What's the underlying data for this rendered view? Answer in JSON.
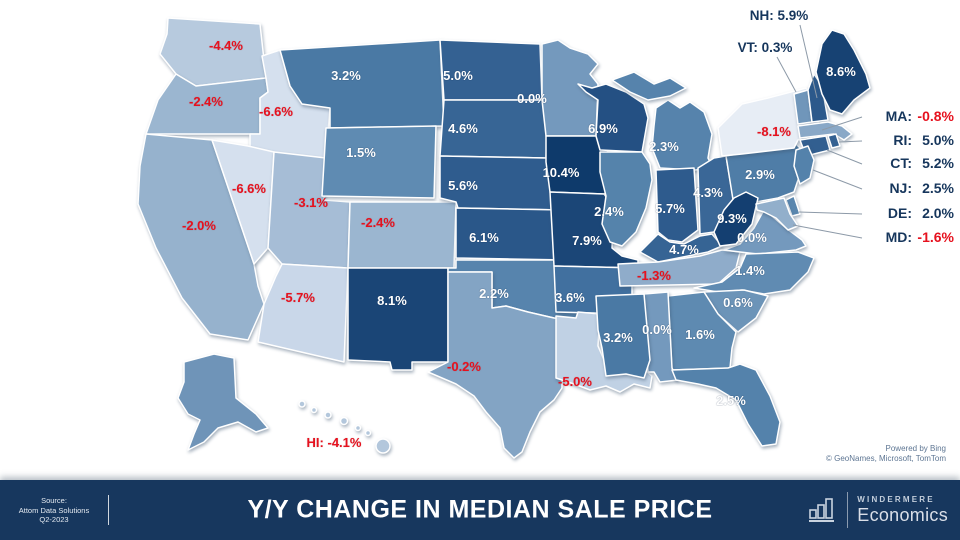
{
  "chart_data": {
    "type": "choropleth",
    "title": "Y/Y CHANGE IN MEDIAN SALE PRICE",
    "unit": "%",
    "region": "United States",
    "period": "Q2-2023",
    "states": [
      {
        "abbr": "WA",
        "name": "Washington",
        "value": -4.4,
        "label": "-4.4%",
        "fill": "#B7CADE"
      },
      {
        "abbr": "OR",
        "name": "Oregon",
        "value": -2.4,
        "label": "-2.4%",
        "fill": "#9BB6D0"
      },
      {
        "abbr": "CA",
        "name": "California",
        "value": -2.0,
        "label": "-2.0%",
        "fill": "#96B2CD"
      },
      {
        "abbr": "ID",
        "name": "Idaho",
        "value": -6.6,
        "label": "-6.6%",
        "fill": "#D5E0EE"
      },
      {
        "abbr": "NV",
        "name": "Nevada",
        "value": -6.6,
        "label": "-6.6%",
        "fill": "#D5E0EE"
      },
      {
        "abbr": "UT",
        "name": "Utah",
        "value": -3.1,
        "label": "-3.1%",
        "fill": "#A6BDD6"
      },
      {
        "abbr": "AZ",
        "name": "Arizona",
        "value": -5.7,
        "label": "-5.7%",
        "fill": "#C9D7E9"
      },
      {
        "abbr": "MT",
        "name": "Montana",
        "value": 3.2,
        "label": "3.2%",
        "fill": "#4A79A4"
      },
      {
        "abbr": "WY",
        "name": "Wyoming",
        "value": 1.5,
        "label": "1.5%",
        "fill": "#5F8BB2"
      },
      {
        "abbr": "CO",
        "name": "Colorado",
        "value": -2.4,
        "label": "-2.4%",
        "fill": "#9BB6D0"
      },
      {
        "abbr": "NM",
        "name": "New Mexico",
        "value": 8.1,
        "label": "8.1%",
        "fill": "#1A4576"
      },
      {
        "abbr": "ND",
        "name": "North Dakota",
        "value": 5.0,
        "label": "5.0%",
        "fill": "#346192"
      },
      {
        "abbr": "SD",
        "name": "South Dakota",
        "value": 4.6,
        "label": "4.6%",
        "fill": "#376595"
      },
      {
        "abbr": "NE",
        "name": "Nebraska",
        "value": 5.6,
        "label": "5.6%",
        "fill": "#2F5C8E"
      },
      {
        "abbr": "KS",
        "name": "Kansas",
        "value": 6.1,
        "label": "6.1%",
        "fill": "#2A5789"
      },
      {
        "abbr": "OK",
        "name": "Oklahoma",
        "value": 2.2,
        "label": "2.2%",
        "fill": "#5784AD"
      },
      {
        "abbr": "TX",
        "name": "Texas",
        "value": -0.2,
        "label": "-0.2%",
        "fill": "#83A4C4"
      },
      {
        "abbr": "MN",
        "name": "Minnesota",
        "value": 0.0,
        "label": "0.0%",
        "fill": "#7499BD"
      },
      {
        "abbr": "IA",
        "name": "Iowa",
        "value": 10.4,
        "label": "10.4%",
        "fill": "#0E3A6B"
      },
      {
        "abbr": "MO",
        "name": "Missouri",
        "value": 7.9,
        "label": "7.9%",
        "fill": "#1B4677"
      },
      {
        "abbr": "AR",
        "name": "Arkansas",
        "value": 3.6,
        "label": "3.6%",
        "fill": "#41709F"
      },
      {
        "abbr": "LA",
        "name": "Louisiana",
        "value": -5.0,
        "label": "-5.0%",
        "fill": "#C0D1E4"
      },
      {
        "abbr": "WI",
        "name": "Wisconsin",
        "value": 6.9,
        "label": "6.9%",
        "fill": "#245083"
      },
      {
        "abbr": "IL",
        "name": "Illinois",
        "value": 2.4,
        "label": "2.4%",
        "fill": "#5583AB"
      },
      {
        "abbr": "MI",
        "name": "Michigan",
        "value": 2.3,
        "label": "2.3%",
        "fill": "#5683AC"
      },
      {
        "abbr": "IN",
        "name": "Indiana",
        "value": 5.7,
        "label": "5.7%",
        "fill": "#2E5B8D"
      },
      {
        "abbr": "OH",
        "name": "Ohio",
        "value": 4.3,
        "label": "4.3%",
        "fill": "#3A6797"
      },
      {
        "abbr": "KY",
        "name": "Kentucky",
        "value": 4.7,
        "label": "4.7%",
        "fill": "#366494"
      },
      {
        "abbr": "TN",
        "name": "Tennessee",
        "value": -1.3,
        "label": "-1.3%",
        "fill": "#8FACCA"
      },
      {
        "abbr": "VA",
        "name": "Virginia",
        "value": 0.0,
        "label": "0.0%",
        "fill": "#7499BD"
      },
      {
        "abbr": "NC",
        "name": "North Carolina",
        "value": 1.4,
        "label": "1.4%",
        "fill": "#608BB2"
      },
      {
        "abbr": "SC",
        "name": "South Carolina",
        "value": 0.6,
        "label": "0.6%",
        "fill": "#6C94B8"
      },
      {
        "abbr": "GA",
        "name": "Georgia",
        "value": 1.6,
        "label": "1.6%",
        "fill": "#5E8AB1"
      },
      {
        "abbr": "AL",
        "name": "Alabama",
        "value": 0.0,
        "label": "0.0%",
        "fill": "#7499BD"
      },
      {
        "abbr": "MS",
        "name": "Mississippi",
        "value": 3.2,
        "label": "3.2%",
        "fill": "#4A79A4"
      },
      {
        "abbr": "FL",
        "name": "Florida",
        "value": 2.5,
        "label": "2.5%",
        "fill": "#5482AB"
      },
      {
        "abbr": "PA",
        "name": "Pennsylvania",
        "value": 2.9,
        "label": "2.9%",
        "fill": "#4F7DA7"
      },
      {
        "abbr": "NY",
        "name": "New York",
        "value": -8.1,
        "label": "-8.1%",
        "fill": "#E7EDF5"
      },
      {
        "abbr": "WV",
        "name": "West Virginia",
        "value": 9.3,
        "label": "9.3%",
        "fill": "#143F71"
      },
      {
        "abbr": "VT",
        "name": "Vermont",
        "value": 0.3,
        "label": "",
        "fill": "#7096BA",
        "callout": "top",
        "callout_label": "VT: 0.3%"
      },
      {
        "abbr": "NH",
        "name": "New Hampshire",
        "value": 5.9,
        "label": "",
        "fill": "#2C598B",
        "callout": "top",
        "callout_label": "NH: 5.9%"
      },
      {
        "abbr": "ME",
        "name": "Maine",
        "value": 8.6,
        "label": "8.6%",
        "fill": "#174273"
      },
      {
        "abbr": "MA",
        "name": "Massachusetts",
        "value": -0.8,
        "label": "",
        "fill": "#89A8C7",
        "callout": "right",
        "abbr_label": "MA:",
        "value_label": "-0.8%"
      },
      {
        "abbr": "CT",
        "name": "Connecticut",
        "value": 5.2,
        "label": "",
        "fill": "#325F90",
        "callout": "right",
        "abbr_label": "CT:",
        "value_label": "5.2%"
      },
      {
        "abbr": "RI",
        "name": "Rhode Island",
        "value": 5.0,
        "label": "",
        "fill": "#346192",
        "callout": "right",
        "abbr_label": "RI:",
        "value_label": "5.0%"
      },
      {
        "abbr": "NJ",
        "name": "New Jersey",
        "value": 2.5,
        "label": "",
        "fill": "#5482AB",
        "callout": "right",
        "abbr_label": "NJ:",
        "value_label": "2.5%"
      },
      {
        "abbr": "DE",
        "name": "Delaware",
        "value": 2.0,
        "label": "",
        "fill": "#5986AE",
        "callout": "right",
        "abbr_label": "DE:",
        "value_label": "2.0%"
      },
      {
        "abbr": "MD",
        "name": "Maryland",
        "value": -1.6,
        "label": "",
        "fill": "#92AFCB",
        "callout": "right",
        "abbr_label": "MD:",
        "value_label": "-1.6%"
      },
      {
        "abbr": "AK",
        "name": "Alaska",
        "value": null,
        "label": "",
        "fill": "#6F94B8"
      },
      {
        "abbr": "HI",
        "name": "Hawaii",
        "value": -4.1,
        "label": "",
        "fill": "#B3C7DC",
        "callout": "hi",
        "callout_label": "HI: -4.1%"
      }
    ]
  },
  "attribution": {
    "line1": "Powered by Bing",
    "line2": "© GeoNames, Microsoft, TomTom"
  },
  "footer": {
    "source_line1": "Source:",
    "source_line2": "Attom Data Solutions",
    "source_line3": "Q2-2023",
    "title": "Y/Y CHANGE IN MEDIAN SALE PRICE",
    "brand_name": "WINDERMERE",
    "brand_sub": "Economics"
  },
  "palette": {
    "footer_bg": "#17375E",
    "negative_text": "#E6111E",
    "positive_text": "#FFFFFF",
    "callout_text": "#16365C",
    "attribution_text": "#5E7693",
    "background": "#FFFFFF"
  }
}
